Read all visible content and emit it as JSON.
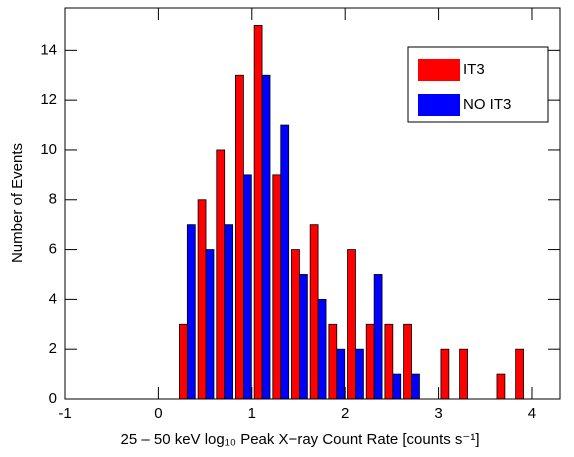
{
  "chart_data": {
    "type": "bar",
    "xlabel": "25 – 50 keV log₁₀ Peak X−ray Count Rate [counts s⁻¹]",
    "ylabel": "Number of Events",
    "x": [
      0.31,
      0.51,
      0.71,
      0.91,
      1.11,
      1.31,
      1.51,
      1.71,
      1.91,
      2.11,
      2.31,
      2.51,
      2.71,
      2.91,
      3.11,
      3.31,
      3.51,
      3.71,
      3.91
    ],
    "series": [
      {
        "name": "IT3",
        "color": "#ff0000",
        "values": [
          3,
          8,
          10,
          13,
          15,
          9,
          6,
          7,
          3,
          6,
          3,
          3,
          3,
          0,
          2,
          2,
          0,
          1,
          2
        ]
      },
      {
        "name": "NO IT3",
        "color": "#0000ff",
        "values": [
          7,
          6,
          7,
          9,
          13,
          11,
          5,
          4,
          2,
          2,
          5,
          1,
          1,
          0,
          0,
          0,
          0,
          0,
          0
        ]
      }
    ],
    "xlim": [
      -1,
      4.3
    ],
    "ylim": [
      0,
      15.7
    ],
    "xticks": [
      -1,
      0,
      1,
      2,
      3,
      4
    ],
    "yticks": [
      0,
      2,
      4,
      6,
      8,
      10,
      12,
      14
    ],
    "legend": "upper-right"
  }
}
